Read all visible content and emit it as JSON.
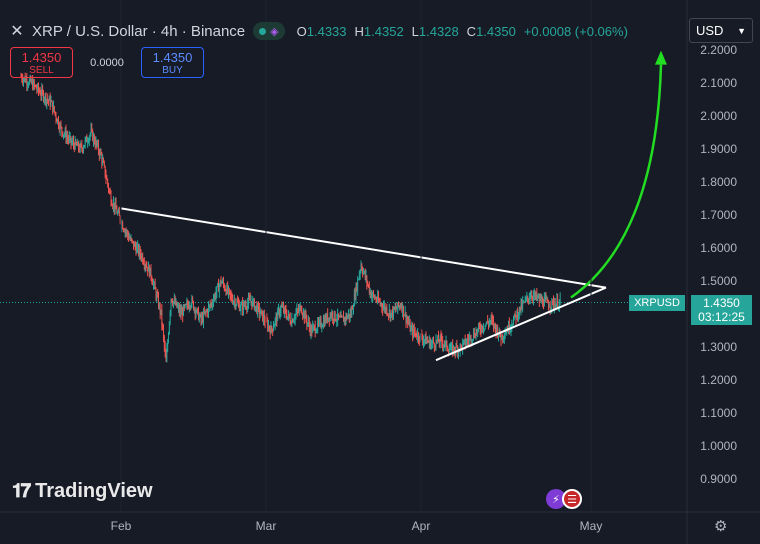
{
  "header": {
    "symbol_title": "XRP / U.S. Dollar · 4h · Binance",
    "ohlc": {
      "o_label": "O",
      "o": "1.4333",
      "h_label": "H",
      "h": "1.4352",
      "l_label": "L",
      "l": "1.4328",
      "c_label": "C",
      "c": "1.4350",
      "change": "+0.0008 (+0.06%)"
    }
  },
  "trade": {
    "sell_price": "1.4350",
    "sell_label": "SELL",
    "spread": "0.0000",
    "buy_price": "1.4350",
    "buy_label": "BUY"
  },
  "currency": {
    "label": "USD"
  },
  "price_tag": {
    "symbol": "XRPUSD",
    "price": "1.4350",
    "countdown": "03:12:25"
  },
  "logo": {
    "text": "TradingView"
  },
  "colors": {
    "up": "#26a69a",
    "down": "#ef5350",
    "background": "#171b26",
    "trendline": "#ffffff",
    "arrow": "#22dd22"
  },
  "chart_data": {
    "type": "candlestick",
    "interval": "4h",
    "title": "XRP / U.S. Dollar · 4h · Binance",
    "x_ticks": [
      "Feb",
      "Mar",
      "Apr",
      "May"
    ],
    "y_ticks": [
      "2.2000",
      "2.1000",
      "2.0000",
      "1.9000",
      "1.8000",
      "1.7000",
      "1.6000",
      "1.5000",
      "1.4000",
      "1.3000",
      "1.2000",
      "1.1000",
      "1.0000",
      "0.9000"
    ],
    "ylim": [
      0.88,
      2.23
    ],
    "last_price": 1.435,
    "price_path": [
      [
        -20,
        2.12
      ],
      [
        -18,
        2.1
      ],
      [
        -16,
        2.07
      ],
      [
        -14,
        2.04
      ],
      [
        -12,
        1.96
      ],
      [
        -10,
        1.92
      ],
      [
        -8,
        1.9
      ],
      [
        -6,
        1.95
      ],
      [
        -4,
        1.88
      ],
      [
        -2,
        1.75
      ],
      [
        0,
        1.68
      ],
      [
        2,
        1.62
      ],
      [
        4,
        1.58
      ],
      [
        6,
        1.52
      ],
      [
        8,
        1.4
      ],
      [
        9,
        1.25
      ],
      [
        10,
        1.45
      ],
      [
        12,
        1.4
      ],
      [
        14,
        1.44
      ],
      [
        16,
        1.38
      ],
      [
        18,
        1.43
      ],
      [
        20,
        1.5
      ],
      [
        22,
        1.45
      ],
      [
        24,
        1.42
      ],
      [
        26,
        1.44
      ],
      [
        28,
        1.4
      ],
      [
        30,
        1.35
      ],
      [
        32,
        1.42
      ],
      [
        34,
        1.38
      ],
      [
        36,
        1.42
      ],
      [
        38,
        1.35
      ],
      [
        40,
        1.37
      ],
      [
        42,
        1.4
      ],
      [
        44,
        1.38
      ],
      [
        46,
        1.4
      ],
      [
        48,
        1.55
      ],
      [
        50,
        1.46
      ],
      [
        52,
        1.43
      ],
      [
        54,
        1.4
      ],
      [
        56,
        1.43
      ],
      [
        58,
        1.35
      ],
      [
        60,
        1.33
      ],
      [
        62,
        1.31
      ],
      [
        64,
        1.32
      ],
      [
        66,
        1.29
      ],
      [
        68,
        1.3
      ],
      [
        70,
        1.33
      ],
      [
        72,
        1.36
      ],
      [
        74,
        1.38
      ],
      [
        76,
        1.33
      ],
      [
        78,
        1.37
      ],
      [
        80,
        1.42
      ],
      [
        82,
        1.46
      ],
      [
        84,
        1.44
      ],
      [
        86,
        1.43
      ],
      [
        88,
        1.435
      ]
    ],
    "annotations": {
      "upper_trendline": [
        [
          0,
          1.72
        ],
        [
          97,
          1.48
        ]
      ],
      "lower_trendline": [
        [
          63,
          1.26
        ],
        [
          97,
          1.48
        ]
      ],
      "projection_arrow": {
        "from": [
          90,
          1.45
        ],
        "to": [
          108,
          2.18
        ]
      }
    }
  }
}
